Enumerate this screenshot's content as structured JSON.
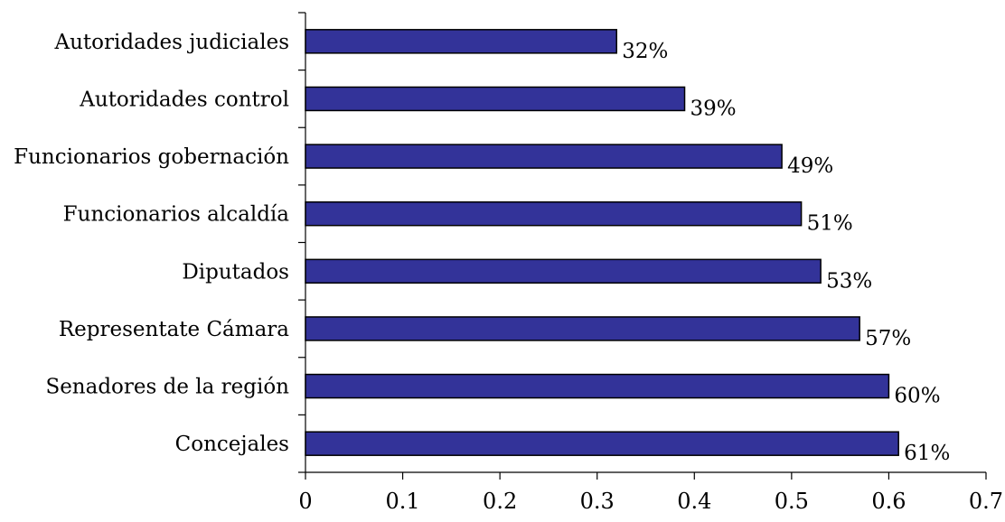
{
  "chart_data": {
    "type": "bar",
    "orientation": "horizontal",
    "categories": [
      "Autoridades judiciales",
      "Autoridades control",
      "Funcionarios gobernación",
      "Funcionarios alcaldía",
      "Diputados",
      "Representate Cámara",
      "Senadores de la región",
      "Concejales"
    ],
    "values": [
      0.32,
      0.39,
      0.49,
      0.51,
      0.53,
      0.57,
      0.6,
      0.61
    ],
    "data_labels": [
      "32%",
      "39%",
      "49%",
      "51%",
      "53%",
      "57%",
      "60%",
      "61%"
    ],
    "x_ticks": [
      "0",
      "0.1",
      "0.2",
      "0.3",
      "0.4",
      "0.5",
      "0.6",
      "0.7"
    ],
    "xlim": [
      0,
      0.7
    ],
    "grid": false,
    "legend": "none",
    "colors": {
      "bar_fill": "#333399",
      "bar_stroke": "#000000"
    }
  }
}
